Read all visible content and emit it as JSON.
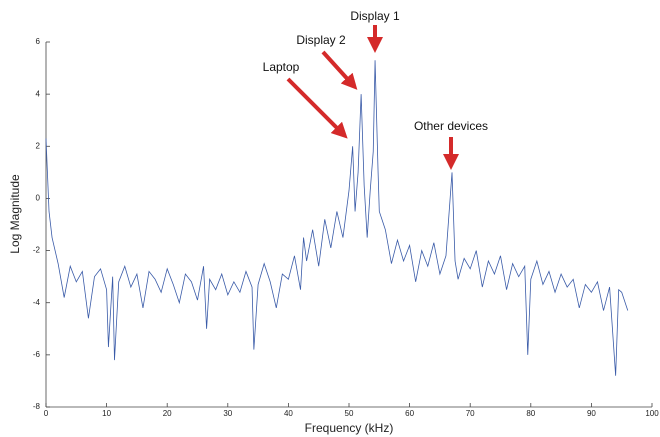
{
  "chart_data": {
    "type": "line",
    "xlabel": "Frequency (kHz)",
    "ylabel": "Log Magnitude",
    "xlim": [
      0,
      100
    ],
    "xticks": [
      0,
      10,
      20,
      30,
      40,
      50,
      60,
      70,
      80,
      90,
      100
    ],
    "ylim": [
      -8,
      6
    ],
    "yticks": [
      -8,
      -6,
      -4,
      -2,
      0,
      2,
      4,
      6
    ],
    "annotations": [
      "Display 1",
      "Display 2",
      "Laptop",
      "Other devices"
    ],
    "x": [
      0,
      0.5,
      1,
      2,
      3,
      4,
      5,
      6,
      7,
      8,
      9,
      10,
      10.3,
      11,
      11.3,
      12,
      13,
      14,
      15,
      16,
      17,
      18,
      19,
      20,
      21,
      22,
      23,
      24,
      25,
      26,
      26.5,
      27,
      28,
      29,
      30,
      31,
      32,
      33,
      34,
      34.3,
      35,
      36,
      37,
      38,
      39,
      40,
      41,
      42,
      42.5,
      43,
      44,
      45,
      46,
      47,
      48,
      49,
      50,
      50.6,
      51,
      51.5,
      52,
      52.5,
      53,
      53.5,
      54,
      54.3,
      54.8,
      55,
      56,
      57,
      58,
      59,
      60,
      61,
      62,
      63,
      64,
      65,
      66,
      67,
      67.5,
      68,
      69,
      70,
      71,
      72,
      73,
      74,
      75,
      76,
      77,
      78,
      79,
      79.5,
      80,
      81,
      82,
      83,
      84,
      85,
      86,
      87,
      88,
      89,
      90,
      91,
      92,
      93,
      94,
      94.5,
      95,
      96
    ],
    "series": [
      {
        "color": "#3a5ba8",
        "values": [
          2.3,
          -0.5,
          -1.5,
          -2.5,
          -3.8,
          -2.6,
          -3.2,
          -2.8,
          -4.6,
          -3,
          -2.7,
          -3.5,
          -5.7,
          -3,
          -6.2,
          -3.2,
          -2.6,
          -3.4,
          -2.9,
          -4.2,
          -2.8,
          -3.1,
          -3.6,
          -2.7,
          -3.3,
          -4,
          -2.9,
          -3.2,
          -3.9,
          -2.6,
          -5,
          -3.1,
          -3.5,
          -2.9,
          -3.7,
          -3.2,
          -3.6,
          -2.8,
          -3.4,
          -5.8,
          -3.3,
          -2.5,
          -3.2,
          -4.2,
          -2.9,
          -3.1,
          -2.2,
          -3.5,
          -1.5,
          -2.4,
          -1.2,
          -2.6,
          -0.8,
          -1.9,
          -0.5,
          -1.5,
          0.3,
          2,
          -0.5,
          1,
          4,
          0.5,
          -1.5,
          0.3,
          1.8,
          5.3,
          1,
          -0.5,
          -1.2,
          -2.5,
          -1.6,
          -2.4,
          -1.8,
          -3.2,
          -2,
          -2.6,
          -1.7,
          -2.9,
          -2.2,
          1,
          -2.4,
          -3.1,
          -2.3,
          -2.7,
          -2,
          -3.4,
          -2.4,
          -2.9,
          -2.2,
          -3.5,
          -2.5,
          -3,
          -2.6,
          -6,
          -3.1,
          -2.4,
          -3.3,
          -2.8,
          -3.6,
          -2.9,
          -3.4,
          -3.1,
          -4.2,
          -3.3,
          -3.6,
          -3.2,
          -4.3,
          -3.4,
          -6.8,
          -3.5,
          -3.6,
          -4.3
        ]
      }
    ]
  }
}
